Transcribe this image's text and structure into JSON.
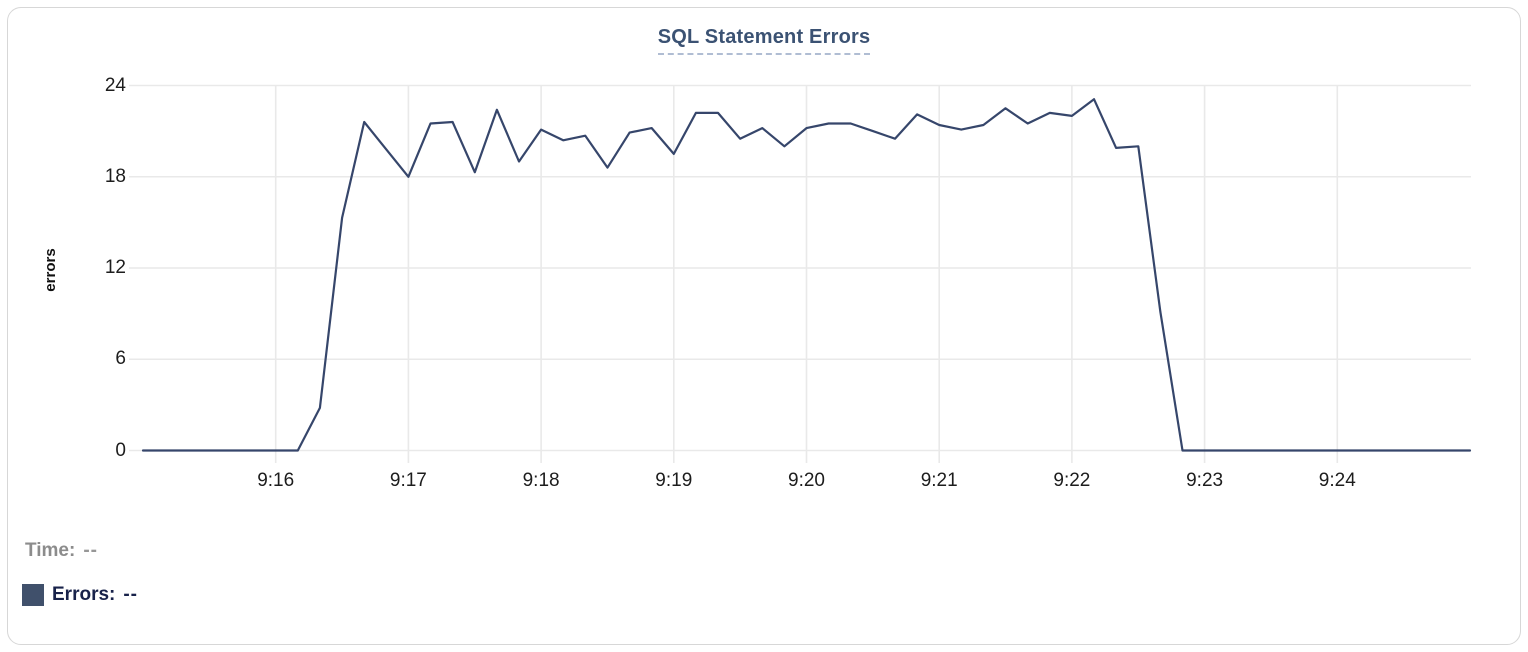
{
  "tooltip": {
    "time_label": "Time:",
    "time_value": "--",
    "errors_label": "Errors:",
    "errors_value": "--"
  },
  "colors": {
    "line": "#36466b",
    "swatch": "#40506b",
    "gridline": "#e9e9e9",
    "title": "#3b5273",
    "title_underline": "#b0bdd3",
    "tick_text": "#1d1d1d",
    "legend_time_text": "#8c8c8c",
    "legend_errors_text": "#18224a",
    "card_border": "#d7d7d7"
  },
  "chart_data": {
    "type": "line",
    "title": "SQL Statement Errors",
    "xlabel": "",
    "ylabel": "errors",
    "ylim": [
      0,
      24
    ],
    "y_ticks": [
      0,
      6,
      12,
      18,
      24
    ],
    "x_tick_labels": [
      "9:16",
      "9:17",
      "9:18",
      "9:19",
      "9:20",
      "9:21",
      "9:22",
      "9:23",
      "9:24"
    ],
    "x_range": [
      "9:15:00",
      "9:25:00"
    ],
    "interval_seconds": 10,
    "grid": true,
    "legend_position": "bottom-left",
    "series": [
      {
        "name": "Errors",
        "color": "#36466b",
        "x": [
          "9:15:00",
          "9:15:10",
          "9:15:20",
          "9:15:30",
          "9:15:40",
          "9:15:50",
          "9:16:00",
          "9:16:10",
          "9:16:20",
          "9:16:30",
          "9:16:40",
          "9:16:50",
          "9:17:00",
          "9:17:10",
          "9:17:20",
          "9:17:30",
          "9:17:40",
          "9:17:50",
          "9:18:00",
          "9:18:10",
          "9:18:20",
          "9:18:30",
          "9:18:40",
          "9:18:50",
          "9:19:00",
          "9:19:10",
          "9:19:20",
          "9:19:30",
          "9:19:40",
          "9:19:50",
          "9:20:00",
          "9:20:10",
          "9:20:20",
          "9:20:30",
          "9:20:40",
          "9:20:50",
          "9:21:00",
          "9:21:10",
          "9:21:20",
          "9:21:30",
          "9:21:40",
          "9:21:50",
          "9:22:00",
          "9:22:10",
          "9:22:20",
          "9:22:30",
          "9:22:40",
          "9:22:50",
          "9:23:00",
          "9:23:10",
          "9:23:20",
          "9:23:30",
          "9:23:40",
          "9:23:50",
          "9:24:00",
          "9:24:10",
          "9:24:20",
          "9:24:30",
          "9:24:40",
          "9:24:50",
          "9:25:00"
        ],
        "values": [
          0,
          0,
          0,
          0,
          0,
          0,
          0,
          0,
          2.8,
          15.3,
          21.6,
          19.8,
          18.0,
          21.5,
          21.6,
          18.3,
          22.4,
          19.0,
          21.1,
          20.4,
          20.7,
          18.6,
          20.9,
          21.2,
          19.5,
          22.2,
          22.2,
          20.5,
          21.2,
          20.0,
          21.2,
          21.5,
          21.5,
          21.0,
          20.5,
          22.1,
          21.4,
          21.1,
          21.4,
          22.5,
          21.5,
          22.2,
          22.0,
          23.1,
          19.9,
          20.0,
          9.1,
          0,
          0,
          0,
          0,
          0,
          0,
          0,
          0,
          0,
          0,
          0,
          0,
          0,
          0
        ]
      }
    ]
  }
}
